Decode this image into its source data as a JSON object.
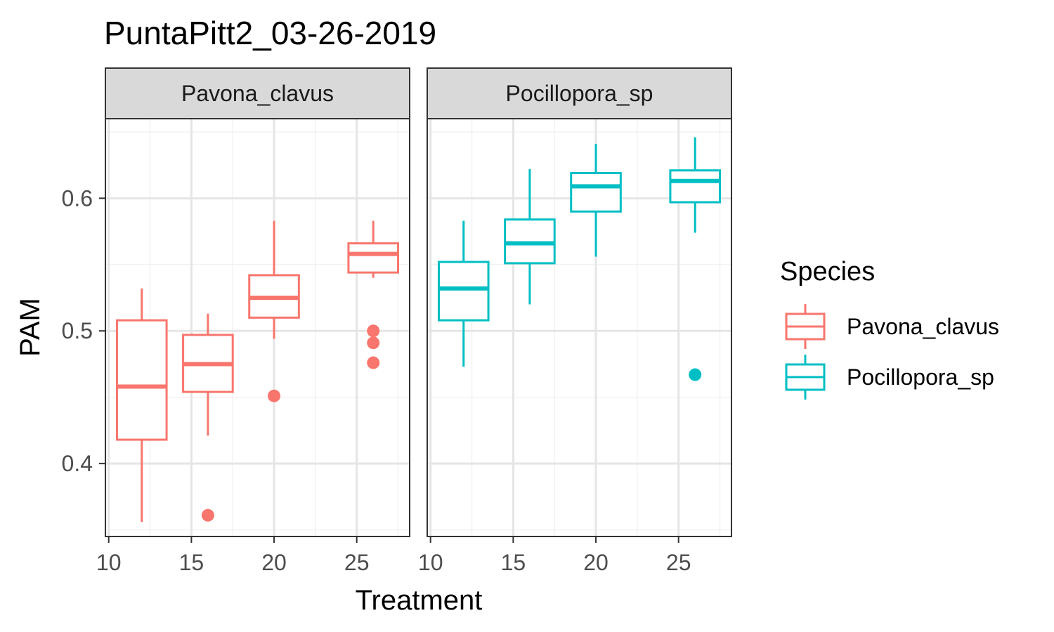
{
  "colors": {
    "Pavona_clavus": "#F8766D",
    "Pocillopora_sp": "#00BFC4",
    "strip_fill": "#D9D9D9",
    "panel_border": "#333333",
    "grid_major": "#E5E5E5",
    "grid_minor": "#F2F2F2",
    "text": "#000000",
    "axis_text": "#4D4D4D"
  },
  "chart_data": {
    "type": "boxplot",
    "title": "PuntaPitt2_03-26-2019",
    "xlabel": "Treatment",
    "ylabel": "PAM",
    "xlim": [
      9.8,
      28.2
    ],
    "ylim": [
      0.345,
      0.66
    ],
    "x_ticks": [
      10,
      15,
      20,
      25
    ],
    "x_tick_labels": [
      "10",
      "15",
      "20",
      "25"
    ],
    "y_ticks": [
      0.4,
      0.5,
      0.6
    ],
    "y_tick_labels": [
      "0.4",
      "0.5",
      "0.6"
    ],
    "grid": true,
    "legend": {
      "title": "Species",
      "position": "right",
      "entries": [
        "Pavona_clavus",
        "Pocillopora_sp"
      ]
    },
    "facets": [
      {
        "label": "Pavona_clavus",
        "boxes": [
          {
            "x": 12,
            "whisker_low": 0.356,
            "q1": 0.418,
            "median": 0.458,
            "q3": 0.508,
            "whisker_high": 0.532,
            "outliers": []
          },
          {
            "x": 16,
            "whisker_low": 0.421,
            "q1": 0.454,
            "median": 0.475,
            "q3": 0.497,
            "whisker_high": 0.513,
            "outliers": [
              0.361
            ]
          },
          {
            "x": 20,
            "whisker_low": 0.494,
            "q1": 0.51,
            "median": 0.525,
            "q3": 0.542,
            "whisker_high": 0.583,
            "outliers": [
              0.451
            ]
          },
          {
            "x": 26,
            "whisker_low": 0.54,
            "q1": 0.544,
            "median": 0.558,
            "q3": 0.566,
            "whisker_high": 0.583,
            "outliers": [
              0.5,
              0.491,
              0.476
            ]
          }
        ]
      },
      {
        "label": "Pocillopora_sp",
        "boxes": [
          {
            "x": 12,
            "whisker_low": 0.473,
            "q1": 0.508,
            "median": 0.532,
            "q3": 0.552,
            "whisker_high": 0.583,
            "outliers": []
          },
          {
            "x": 16,
            "whisker_low": 0.52,
            "q1": 0.551,
            "median": 0.566,
            "q3": 0.584,
            "whisker_high": 0.622,
            "outliers": []
          },
          {
            "x": 20,
            "whisker_low": 0.556,
            "q1": 0.59,
            "median": 0.609,
            "q3": 0.619,
            "whisker_high": 0.641,
            "outliers": []
          },
          {
            "x": 26,
            "whisker_low": 0.574,
            "q1": 0.597,
            "median": 0.613,
            "q3": 0.621,
            "whisker_high": 0.646,
            "outliers": [
              0.467
            ]
          }
        ]
      }
    ]
  }
}
